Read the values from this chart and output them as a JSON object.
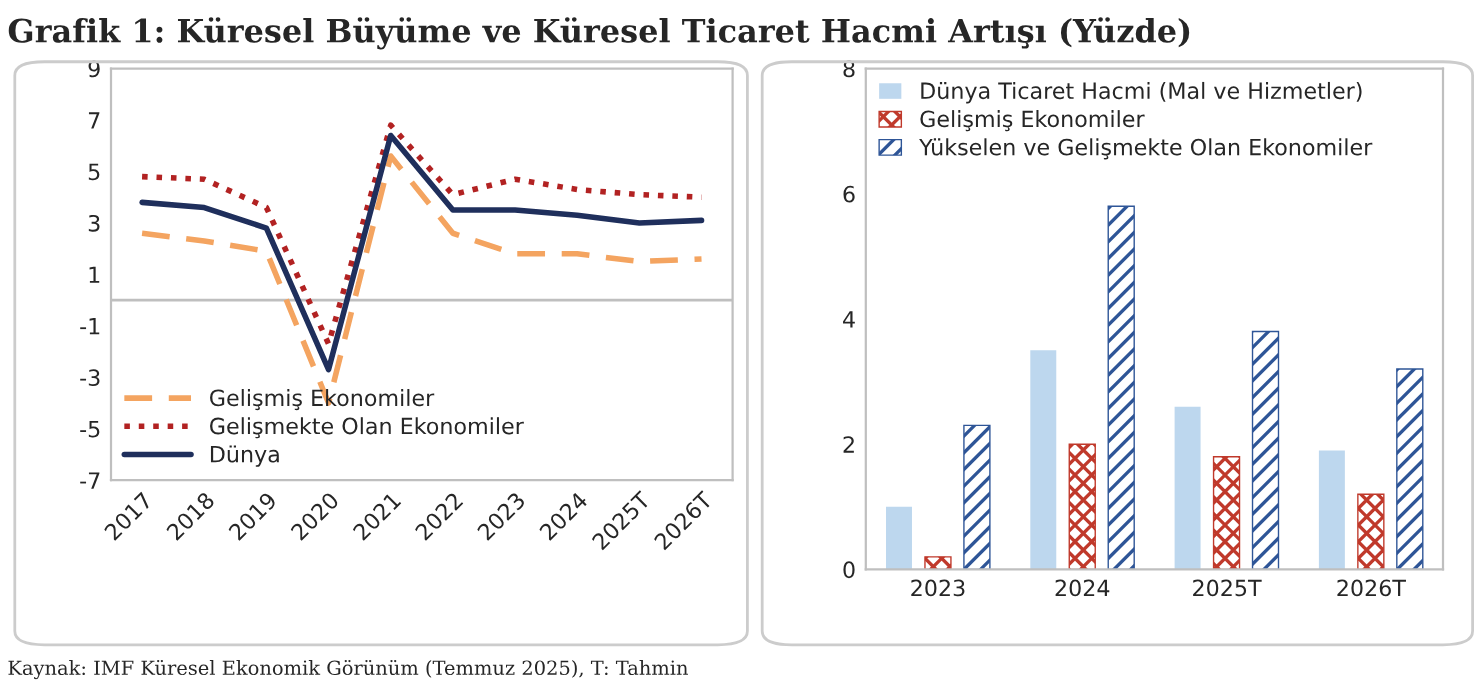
{
  "chart_data": [
    {
      "type": "line",
      "title": "Grafik 1: Küresel Büyüme ve Küresel Ticaret Hacmi Artışı (Yüzde)",
      "categories": [
        "2017",
        "2018",
        "2019",
        "2020",
        "2021",
        "2022",
        "2023",
        "2024",
        "2025T",
        "2026T"
      ],
      "series": [
        {
          "name": "Gelişmiş Ekonomiler",
          "color": "#f4a460",
          "line_style": "dashed",
          "values": [
            2.6,
            2.3,
            1.9,
            -4.0,
            5.6,
            2.6,
            1.8,
            1.8,
            1.5,
            1.6
          ]
        },
        {
          "name": "Gelişmekte Olan Ekonomiler",
          "color": "#b22222",
          "line_style": "dotted",
          "values": [
            4.8,
            4.7,
            3.6,
            -1.7,
            6.8,
            4.1,
            4.7,
            4.3,
            4.1,
            4.0
          ]
        },
        {
          "name": "Dünya",
          "color": "#1f2f5c",
          "line_style": "solid",
          "values": [
            3.8,
            3.6,
            2.8,
            -2.7,
            6.4,
            3.5,
            3.5,
            3.3,
            3.0,
            3.1
          ]
        }
      ],
      "ylim": [
        -7,
        9
      ],
      "yticks": [
        -7,
        -5,
        -3,
        -1,
        1,
        3,
        5,
        7,
        9
      ],
      "grid": false,
      "legend": "bottom left",
      "marker": "none",
      "ref_lines": [
        {
          "axis": "y",
          "value": 0,
          "color": "#bfbfbf"
        }
      ],
      "annotations": [
        "Kaynak: IMF Küresel Ekonomik Görünüm (Temmuz 2025), T: Tahmin"
      ]
    },
    {
      "type": "bar",
      "categories": [
        "2023",
        "2024",
        "2025T",
        "2026T"
      ],
      "series": [
        {
          "name": "Dünya Ticaret Hacmi (Mal ve Hizmetler)",
          "color": "#bdd7ee",
          "values": [
            1.0,
            3.5,
            2.6,
            1.9
          ]
        },
        {
          "name": "Gelişmiş Ekonomiler",
          "color": "#c0392b",
          "values": [
            0.2,
            2.0,
            1.8,
            1.2
          ]
        },
        {
          "name": "Yükselen ve Gelişmekte Olan Ekonomiler",
          "color": "#2e5597",
          "values": [
            2.3,
            5.8,
            3.8,
            3.2
          ]
        }
      ],
      "ylim": [
        0,
        8
      ],
      "yticks": [
        0,
        2,
        4,
        6,
        8
      ],
      "grid": false,
      "legend": "top left"
    }
  ]
}
